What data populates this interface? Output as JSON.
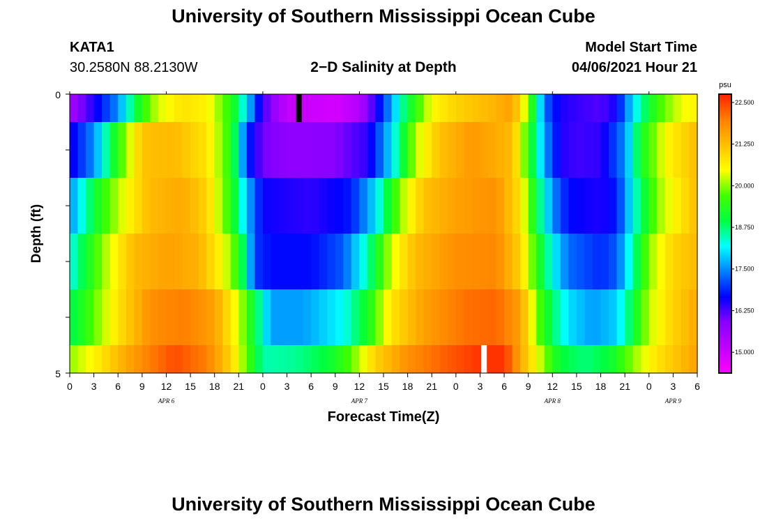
{
  "page": {
    "title_top": "University of Southern Mississippi Ocean Cube",
    "title_bottom": "University of Southern Mississippi Ocean Cube",
    "station_id": "KATA1",
    "station_coords": "30.2580N  88.2130W",
    "chart_title": "2−D Salinity at Depth",
    "model_start_label": "Model Start Time",
    "model_start_value": "04/06/2021 Hour 21"
  },
  "chart_data": {
    "type": "heatmap",
    "title": "2−D Salinity at Depth",
    "xlabel": "Forecast Time(Z)",
    "ylabel": "Depth (ft)",
    "y_tick_labels": [
      "0",
      "5"
    ],
    "ylim": [
      0,
      5
    ],
    "x_tick_labels": [
      "0",
      "3",
      "6",
      "9",
      "12",
      "15",
      "18",
      "21",
      "0",
      "3",
      "6",
      "9",
      "12",
      "15",
      "18",
      "21",
      "0",
      "3",
      "6",
      "9",
      "12",
      "15",
      "18",
      "21",
      "0",
      "3",
      "6"
    ],
    "date_labels": [
      "APR 6",
      "APR 7",
      "APR 8",
      "APR 9"
    ],
    "hours_total": 78,
    "colorbar": {
      "unit": "psu",
      "min": 14.375,
      "max": 22.75,
      "tick_labels": [
        "22.500",
        "21.250",
        "20.000",
        "18.750",
        "17.500",
        "16.250",
        "15.000"
      ],
      "tick_values": [
        22.5,
        21.25,
        20.0,
        18.75,
        17.5,
        16.25,
        15.0
      ],
      "color_stops": [
        "#ff00ff",
        "#c000ff",
        "#8a00ff",
        "#0000ff",
        "#0080ff",
        "#00ffff",
        "#00ff40",
        "#40ff00",
        "#ffff00",
        "#ffc000",
        "#ff8000",
        "#ff2000"
      ]
    },
    "depth_layers": [
      {
        "depth": "0-1",
        "keyframes": [
          [
            0,
            15.5
          ],
          [
            6,
            17.5
          ],
          [
            9,
            19.5
          ],
          [
            11,
            20.3
          ],
          [
            14,
            20.8
          ],
          [
            17,
            20.6
          ],
          [
            20,
            19.5
          ],
          [
            22,
            18.0
          ],
          [
            24,
            16.3
          ],
          [
            27,
            15.1
          ],
          [
            33,
            14.9
          ],
          [
            36,
            15.3
          ],
          [
            39,
            17.0
          ],
          [
            42,
            19.0
          ],
          [
            45,
            20.5
          ],
          [
            48,
            21.0
          ],
          [
            52,
            21.3
          ],
          [
            55,
            21.6
          ],
          [
            57,
            20.0
          ],
          [
            59,
            17.3
          ],
          [
            61,
            16.5
          ],
          [
            66,
            16.2
          ],
          [
            68,
            16.6
          ],
          [
            70,
            18.0
          ],
          [
            73,
            19.6
          ],
          [
            76,
            20.4
          ],
          [
            78,
            20.6
          ]
        ]
      },
      {
        "depth": "1-2",
        "keyframes": [
          [
            0,
            16.5
          ],
          [
            3,
            17.5
          ],
          [
            6,
            19.5
          ],
          [
            9,
            21.2
          ],
          [
            13,
            21.3
          ],
          [
            17,
            20.8
          ],
          [
            20,
            19.5
          ],
          [
            22,
            17.0
          ],
          [
            24,
            16.0
          ],
          [
            28,
            15.8
          ],
          [
            33,
            15.9
          ],
          [
            37,
            16.4
          ],
          [
            40,
            18.0
          ],
          [
            43,
            20.2
          ],
          [
            46,
            21.2
          ],
          [
            50,
            21.7
          ],
          [
            55,
            21.3
          ],
          [
            57,
            19.5
          ],
          [
            59,
            17.6
          ],
          [
            61,
            16.5
          ],
          [
            63,
            16.3
          ],
          [
            66,
            16.4
          ],
          [
            69,
            17.5
          ],
          [
            71,
            19.2
          ],
          [
            74,
            20.5
          ],
          [
            78,
            21.3
          ]
        ]
      },
      {
        "depth": "2-3",
        "keyframes": [
          [
            0,
            17.5
          ],
          [
            4,
            19.5
          ],
          [
            7,
            20.5
          ],
          [
            10,
            21.3
          ],
          [
            14,
            21.5
          ],
          [
            17,
            21.0
          ],
          [
            20,
            19.5
          ],
          [
            22,
            17.8
          ],
          [
            24,
            16.6
          ],
          [
            30,
            16.4
          ],
          [
            35,
            16.8
          ],
          [
            38,
            18.0
          ],
          [
            41,
            20.0
          ],
          [
            44,
            21.2
          ],
          [
            48,
            21.6
          ],
          [
            53,
            21.8
          ],
          [
            56,
            20.8
          ],
          [
            58,
            19.0
          ],
          [
            60,
            17.5
          ],
          [
            62,
            16.7
          ],
          [
            66,
            16.5
          ],
          [
            68,
            16.8
          ],
          [
            70,
            18.2
          ],
          [
            73,
            20.0
          ],
          [
            78,
            21.3
          ]
        ]
      },
      {
        "depth": "3-4",
        "keyframes": [
          [
            0,
            18.2
          ],
          [
            4,
            20.0
          ],
          [
            8,
            21.3
          ],
          [
            12,
            21.6
          ],
          [
            16,
            21.4
          ],
          [
            19,
            20.5
          ],
          [
            21,
            19.5
          ],
          [
            23,
            17.0
          ],
          [
            25,
            16.7
          ],
          [
            30,
            16.7
          ],
          [
            34,
            17.2
          ],
          [
            37,
            18.5
          ],
          [
            40,
            20.3
          ],
          [
            43,
            21.3
          ],
          [
            48,
            21.8
          ],
          [
            53,
            21.9
          ],
          [
            56,
            21.0
          ],
          [
            58,
            19.5
          ],
          [
            60,
            18.2
          ],
          [
            62,
            17.3
          ],
          [
            66,
            16.9
          ],
          [
            68,
            17.2
          ],
          [
            70,
            18.5
          ],
          [
            72,
            20.0
          ],
          [
            75,
            21.0
          ],
          [
            78,
            21.3
          ]
        ]
      },
      {
        "depth": "4-5",
        "keyframes": [
          [
            0,
            18.8
          ],
          [
            3,
            19.8
          ],
          [
            6,
            20.8
          ],
          [
            10,
            21.8
          ],
          [
            14,
            22.0
          ],
          [
            18,
            21.6
          ],
          [
            21,
            20.3
          ],
          [
            23,
            19.0
          ],
          [
            25,
            17.6
          ],
          [
            29,
            17.6
          ],
          [
            34,
            18.2
          ],
          [
            37,
            19.2
          ],
          [
            40,
            20.8
          ],
          [
            44,
            21.6
          ],
          [
            49,
            22.1
          ],
          [
            53,
            22.2
          ],
          [
            56,
            21.6
          ],
          [
            58,
            20.0
          ],
          [
            60,
            18.8
          ],
          [
            62,
            18.0
          ],
          [
            65,
            17.6
          ],
          [
            68,
            17.9
          ],
          [
            70,
            19.0
          ],
          [
            72,
            20.2
          ],
          [
            75,
            21.0
          ],
          [
            78,
            21.5
          ]
        ]
      },
      {
        "depth": "5",
        "keyframes": [
          [
            0,
            20.0
          ],
          [
            4,
            20.8
          ],
          [
            7,
            21.5
          ],
          [
            10,
            22.0
          ],
          [
            13,
            22.4
          ],
          [
            17,
            22.0
          ],
          [
            20,
            21.0
          ],
          [
            22,
            19.8
          ],
          [
            24,
            18.5
          ],
          [
            28,
            18.6
          ],
          [
            32,
            19.0
          ],
          [
            35,
            19.8
          ],
          [
            38,
            21.0
          ],
          [
            42,
            21.8
          ],
          [
            46,
            22.2
          ],
          [
            51,
            22.6
          ],
          [
            54,
            22.6
          ],
          [
            57,
            21.0
          ],
          [
            59,
            20.0
          ],
          [
            61,
            19.0
          ],
          [
            64,
            18.7
          ],
          [
            67,
            19.0
          ],
          [
            70,
            20.0
          ],
          [
            73,
            20.8
          ],
          [
            78,
            21.6
          ]
        ]
      }
    ],
    "current_time_markers": [
      {
        "layer": "0-1",
        "hour": 28.5,
        "color": "#000000"
      },
      {
        "layer": "5",
        "hour": 51.5,
        "color": "#ffffff"
      }
    ]
  }
}
